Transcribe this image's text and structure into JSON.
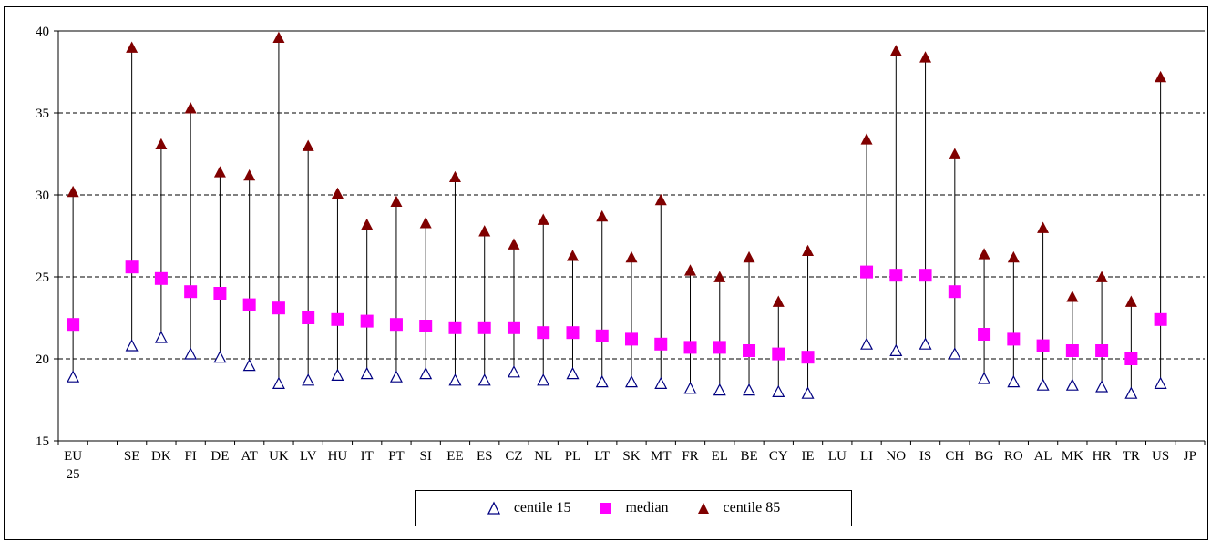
{
  "chart_data": {
    "type": "scatter",
    "title": "",
    "xlabel": "",
    "ylabel": "",
    "ylim": [
      15,
      40
    ],
    "yticks": [
      15,
      20,
      25,
      30,
      35,
      40
    ],
    "grid": "horizontal dashed",
    "legend_position": "bottom-center",
    "categories": [
      {
        "line1": "EU",
        "line2": "25"
      },
      {
        "line1": "",
        "line2": ""
      },
      {
        "line1": "SE",
        "line2": ""
      },
      {
        "line1": "DK",
        "line2": ""
      },
      {
        "line1": "FI",
        "line2": ""
      },
      {
        "line1": "DE",
        "line2": ""
      },
      {
        "line1": "AT",
        "line2": ""
      },
      {
        "line1": "UK",
        "line2": ""
      },
      {
        "line1": "LV",
        "line2": ""
      },
      {
        "line1": "HU",
        "line2": ""
      },
      {
        "line1": "IT",
        "line2": ""
      },
      {
        "line1": "PT",
        "line2": ""
      },
      {
        "line1": "SI",
        "line2": ""
      },
      {
        "line1": "EE",
        "line2": ""
      },
      {
        "line1": "ES",
        "line2": ""
      },
      {
        "line1": "CZ",
        "line2": ""
      },
      {
        "line1": "NL",
        "line2": ""
      },
      {
        "line1": "PL",
        "line2": ""
      },
      {
        "line1": "LT",
        "line2": ""
      },
      {
        "line1": "SK",
        "line2": ""
      },
      {
        "line1": "MT",
        "line2": ""
      },
      {
        "line1": "FR",
        "line2": ""
      },
      {
        "line1": "EL",
        "line2": ""
      },
      {
        "line1": "BE",
        "line2": ""
      },
      {
        "line1": "CY",
        "line2": ""
      },
      {
        "line1": "IE",
        "line2": ""
      },
      {
        "line1": "LU",
        "line2": ""
      },
      {
        "line1": "LI",
        "line2": ""
      },
      {
        "line1": "NO",
        "line2": ""
      },
      {
        "line1": "IS",
        "line2": ""
      },
      {
        "line1": "CH",
        "line2": ""
      },
      {
        "line1": "BG",
        "line2": ""
      },
      {
        "line1": "RO",
        "line2": ""
      },
      {
        "line1": "AL",
        "line2": ""
      },
      {
        "line1": "MK",
        "line2": ""
      },
      {
        "line1": "HR",
        "line2": ""
      },
      {
        "line1": "TR",
        "line2": ""
      },
      {
        "line1": "US",
        "line2": ""
      },
      {
        "line1": "JP",
        "line2": ""
      }
    ],
    "series": [
      {
        "name": "centile 15",
        "marker": "triangle-open",
        "color": "#000080",
        "values": [
          18.9,
          null,
          20.8,
          21.3,
          20.3,
          20.1,
          19.6,
          18.5,
          18.7,
          19.0,
          19.1,
          18.9,
          19.1,
          18.7,
          18.7,
          19.2,
          18.7,
          19.1,
          18.6,
          18.6,
          18.5,
          18.2,
          18.1,
          18.1,
          18.0,
          17.9,
          null,
          20.9,
          20.5,
          20.9,
          20.3,
          18.8,
          18.6,
          18.4,
          18.4,
          18.3,
          17.9,
          18.5,
          null
        ]
      },
      {
        "name": "median",
        "marker": "square",
        "color": "#FF00FF",
        "values": [
          22.1,
          null,
          25.6,
          24.9,
          24.1,
          24.0,
          23.3,
          23.1,
          22.5,
          22.4,
          22.3,
          22.1,
          22.0,
          21.9,
          21.9,
          21.9,
          21.6,
          21.6,
          21.4,
          21.2,
          20.9,
          20.7,
          20.7,
          20.5,
          20.3,
          20.1,
          null,
          25.3,
          25.1,
          25.1,
          24.1,
          21.5,
          21.2,
          20.8,
          20.5,
          20.5,
          20.0,
          22.4,
          null
        ]
      },
      {
        "name": "centile 85",
        "marker": "triangle-filled",
        "color": "#800000",
        "values": [
          30.2,
          null,
          39.0,
          33.1,
          35.3,
          31.4,
          31.2,
          39.6,
          33.0,
          30.1,
          28.2,
          29.6,
          28.3,
          31.1,
          27.8,
          27.0,
          28.5,
          26.3,
          28.7,
          26.2,
          29.7,
          25.4,
          25.0,
          26.2,
          23.5,
          26.6,
          null,
          33.4,
          38.8,
          38.4,
          32.5,
          26.4,
          26.2,
          28.0,
          23.8,
          25.0,
          23.5,
          37.2,
          null
        ]
      }
    ]
  }
}
